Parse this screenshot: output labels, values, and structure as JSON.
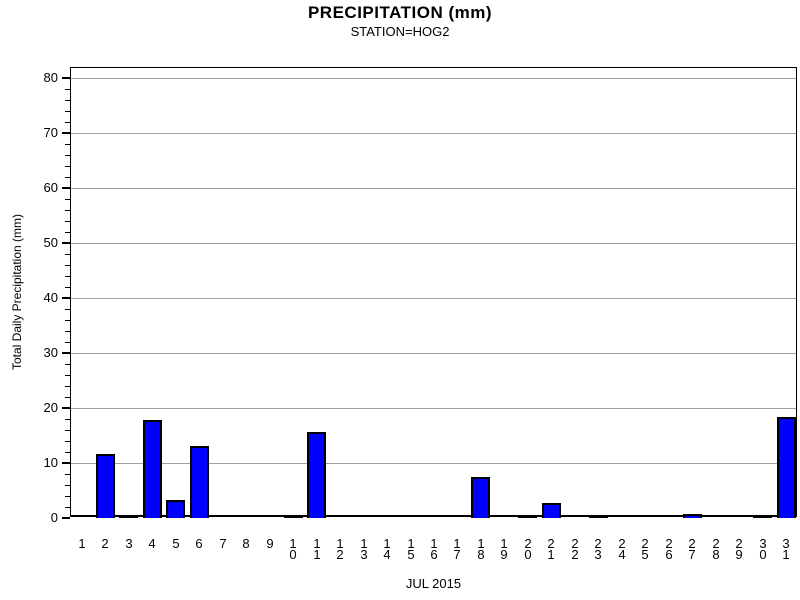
{
  "chart_data": {
    "type": "bar",
    "title": "PRECIPITATION (mm)",
    "subtitle": "STATION=HOG2",
    "xlabel": "JUL 2015",
    "ylabel": "Total Daily Precipitation (mm)",
    "categories": [
      "1",
      "2",
      "3",
      "4",
      "5",
      "6",
      "7",
      "8",
      "9",
      "10",
      "11",
      "12",
      "13",
      "14",
      "15",
      "16",
      "17",
      "18",
      "19",
      "20",
      "21",
      "22",
      "23",
      "24",
      "25",
      "26",
      "27",
      "28",
      "29",
      "30",
      "31"
    ],
    "values": [
      0,
      11.7,
      0.2,
      17.8,
      3.3,
      13.0,
      0,
      0,
      0,
      0.2,
      15.6,
      0,
      0,
      0,
      0,
      0,
      0,
      7.4,
      0,
      0.2,
      2.7,
      0,
      0.2,
      0,
      0,
      0,
      0.8,
      0,
      0,
      0.2,
      18.4
    ],
    "ylim": [
      0,
      80
    ],
    "y_major_ticks": [
      0,
      10,
      20,
      30,
      40,
      50,
      60,
      70,
      80
    ],
    "y_minor_step": 2,
    "grid": "horizontal-major",
    "legend": "none",
    "colors": {
      "bar_fill": "#0000ff",
      "bar_border": "#000000",
      "gridline": "#a0a0a0",
      "frame": "#000000",
      "text": "#000000"
    }
  }
}
